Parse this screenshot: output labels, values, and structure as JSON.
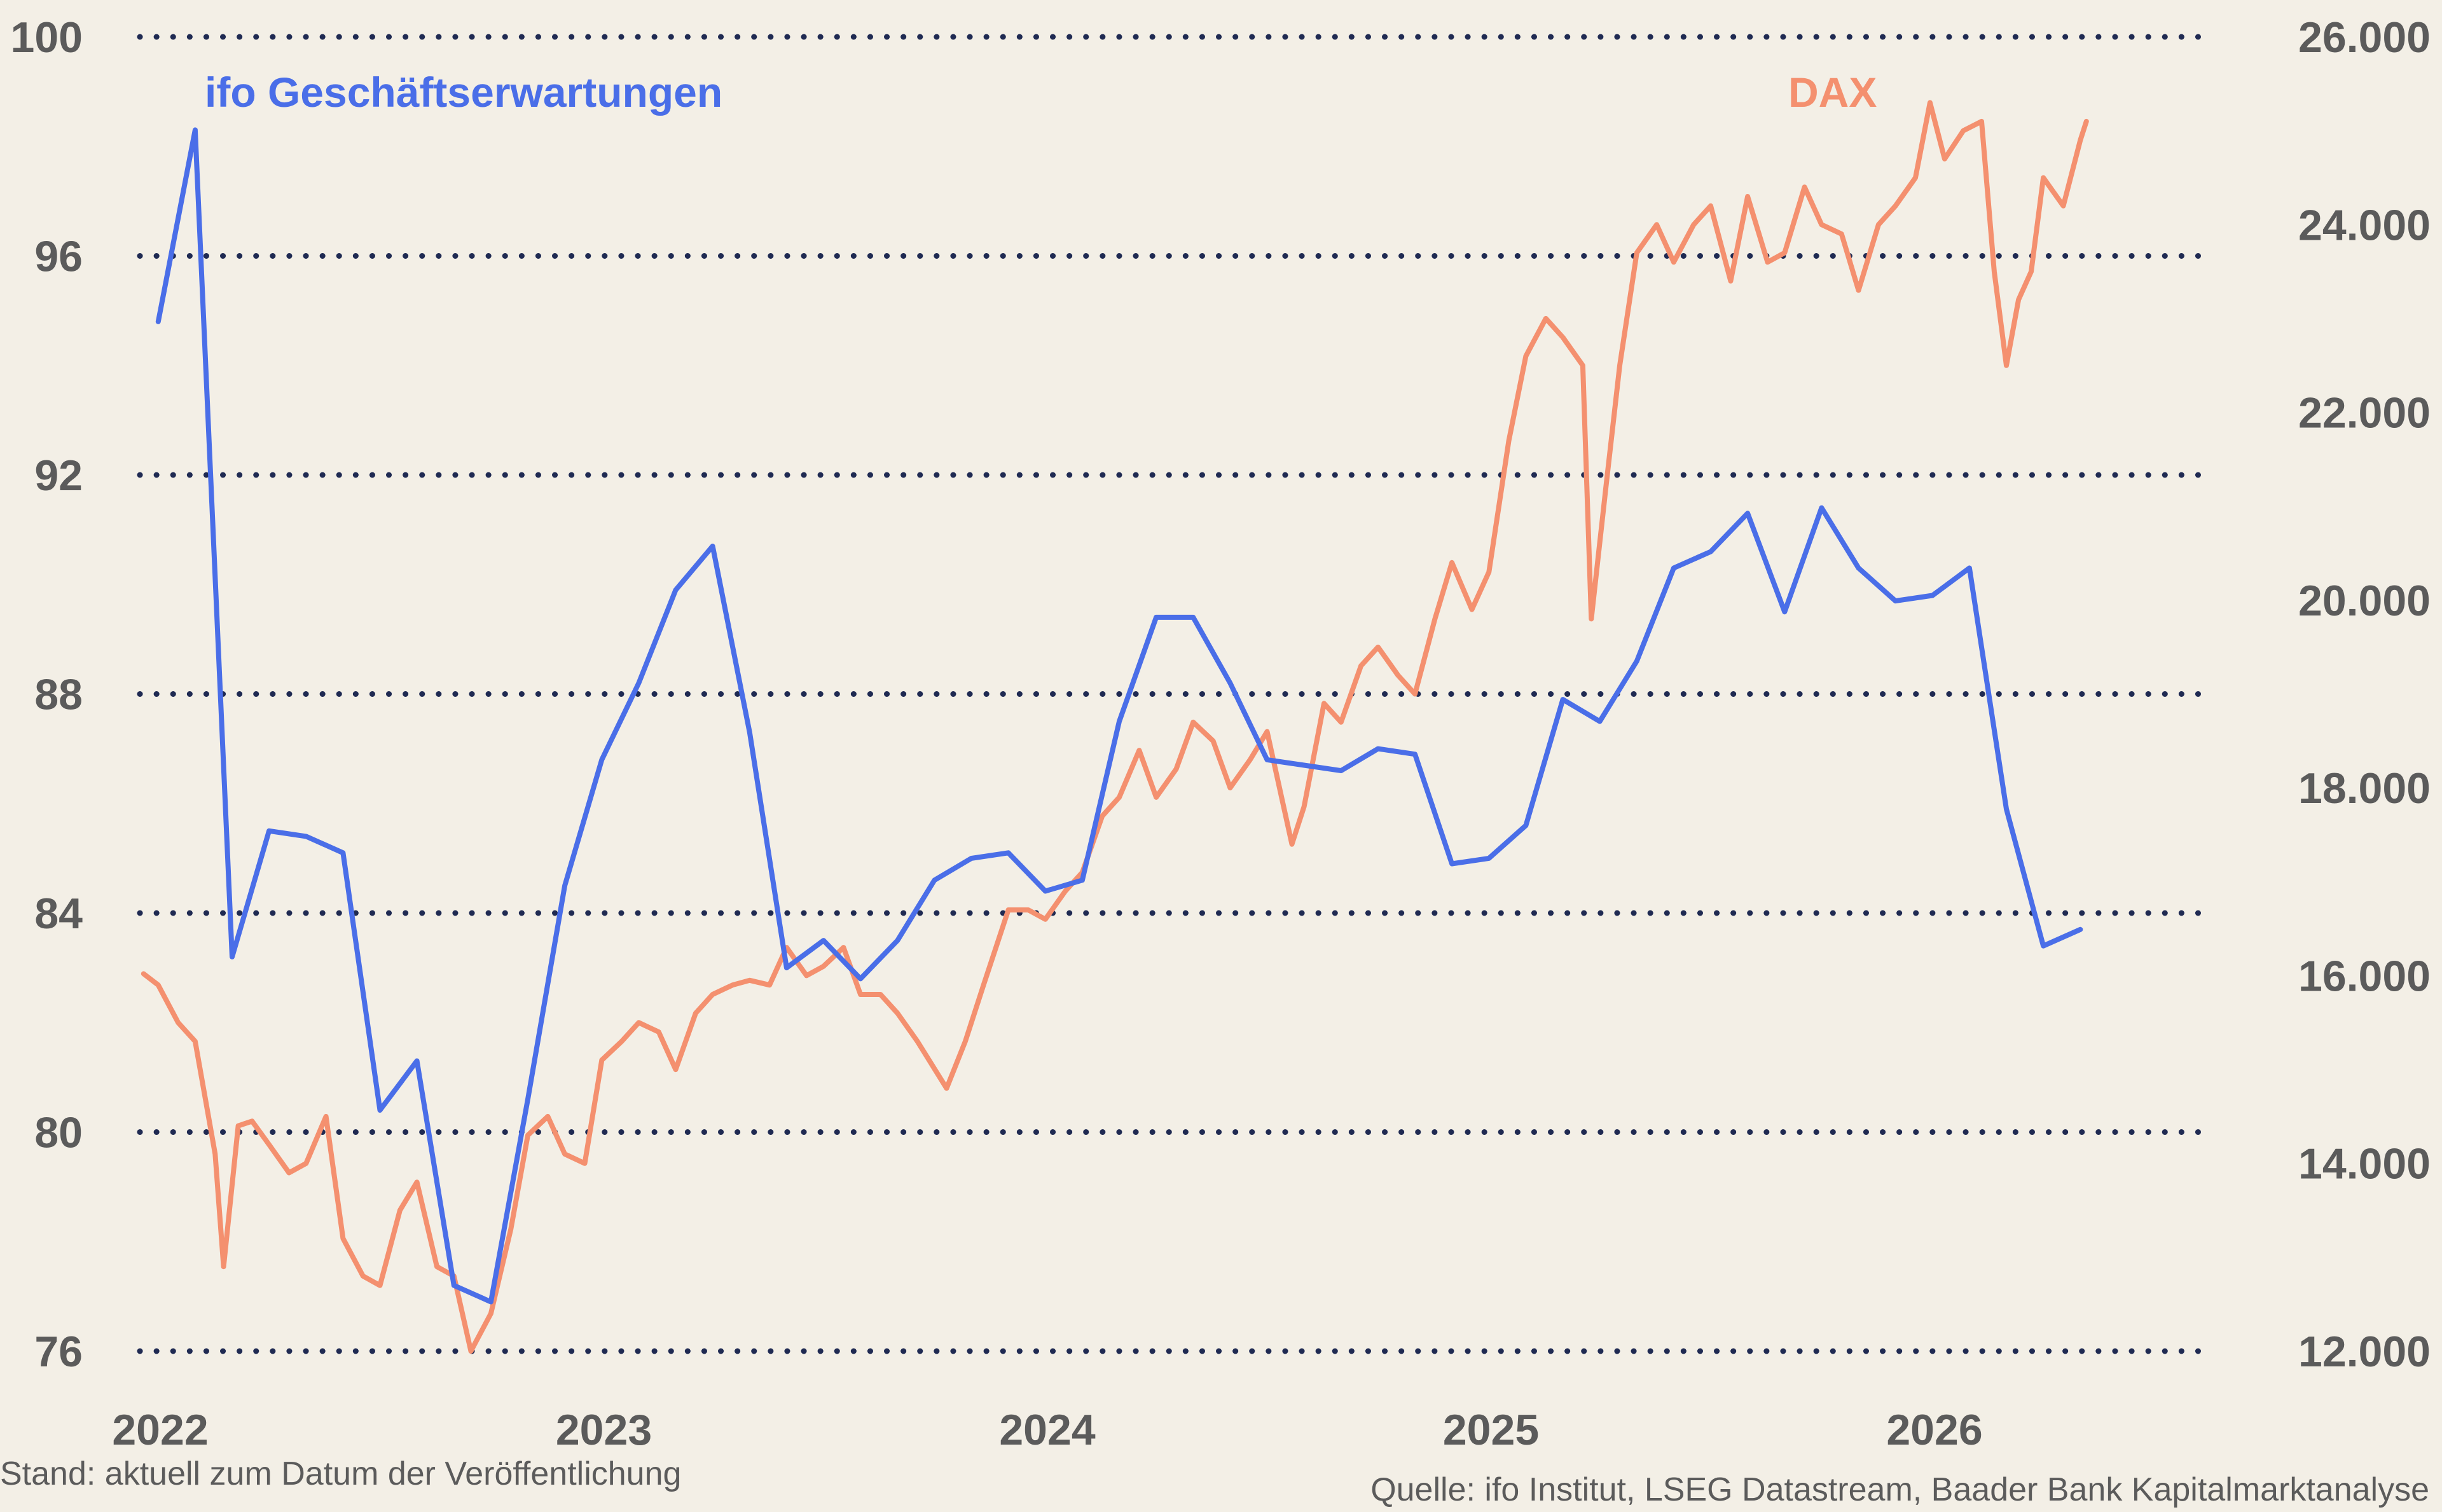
{
  "chart_data": {
    "type": "line",
    "title": "",
    "x_ticks": [
      "2022",
      "2023",
      "2024",
      "2025",
      "2026"
    ],
    "y_left": {
      "ticks": [
        "100",
        "96",
        "92",
        "88",
        "84",
        "80",
        "76"
      ],
      "ylim": [
        76,
        100
      ]
    },
    "y_right": {
      "ticks": [
        "26.000",
        "24.000",
        "22.000",
        "20.000",
        "18.000",
        "16.000",
        "14.000",
        "12.000"
      ],
      "ylim": [
        12000,
        26000
      ]
    },
    "grid": "dotted horizontal",
    "series": [
      {
        "name": "ifo Geschäftserwartungen",
        "axis": "left",
        "color": "#4a6ee8",
        "points": [
          [
            "2022-01",
            94.8
          ],
          [
            "2022-02",
            98.3
          ],
          [
            "2022-03",
            83.2
          ],
          [
            "2022-04",
            85.5
          ],
          [
            "2022-05",
            85.4
          ],
          [
            "2022-06",
            85.1
          ],
          [
            "2022-07",
            80.4
          ],
          [
            "2022-08",
            81.3
          ],
          [
            "2022-09",
            77.2
          ],
          [
            "2022-10",
            76.9
          ],
          [
            "2022-11",
            80.6
          ],
          [
            "2022-12",
            84.5
          ],
          [
            "2023-01",
            86.8
          ],
          [
            "2023-02",
            88.2
          ],
          [
            "2023-03",
            89.9
          ],
          [
            "2023-04",
            90.7
          ],
          [
            "2023-05",
            87.3
          ],
          [
            "2023-06",
            83.0
          ],
          [
            "2023-07",
            83.5
          ],
          [
            "2023-08",
            82.8
          ],
          [
            "2023-09",
            83.5
          ],
          [
            "2023-10",
            84.6
          ],
          [
            "2023-11",
            85.0
          ],
          [
            "2023-12",
            85.1
          ],
          [
            "2024-01",
            84.4
          ],
          [
            "2024-02",
            84.6
          ],
          [
            "2024-03",
            87.5
          ],
          [
            "2024-04",
            89.4
          ],
          [
            "2024-05",
            89.4
          ],
          [
            "2024-06",
            88.2
          ],
          [
            "2024-07",
            86.8
          ],
          [
            "2024-08",
            86.7
          ],
          [
            "2024-09",
            86.6
          ],
          [
            "2024-10",
            87.0
          ],
          [
            "2024-11",
            86.9
          ],
          [
            "2024-12",
            84.9
          ],
          [
            "2025-01",
            85.0
          ],
          [
            "2025-02",
            85.6
          ],
          [
            "2025-03",
            87.9
          ],
          [
            "2025-04",
            87.5
          ],
          [
            "2025-05",
            88.6
          ],
          [
            "2025-06",
            90.3
          ],
          [
            "2025-07",
            90.6
          ],
          [
            "2025-08",
            91.3
          ],
          [
            "2025-09",
            89.5
          ],
          [
            "2025-10",
            91.4
          ],
          [
            "2025-11",
            90.3
          ],
          [
            "2025-12",
            89.7
          ],
          [
            "2026-01",
            89.8
          ],
          [
            "2026-02",
            90.3
          ],
          [
            "2026-03",
            85.9
          ],
          [
            "2026-04",
            83.4
          ],
          [
            "2026-05",
            83.7
          ]
        ]
      },
      {
        "name": "DAX",
        "axis": "right",
        "color": "#f4906f",
        "points": [
          [
            "2022-01-03",
            16020
          ],
          [
            "2022-01-15",
            15900
          ],
          [
            "2022-02-01",
            15500
          ],
          [
            "2022-02-15",
            15300
          ],
          [
            "2022-03-01",
            14100
          ],
          [
            "2022-03-08",
            12900
          ],
          [
            "2022-03-20",
            14400
          ],
          [
            "2022-04-01",
            14450
          ],
          [
            "2022-04-15",
            14200
          ],
          [
            "2022-05-01",
            13900
          ],
          [
            "2022-05-15",
            14000
          ],
          [
            "2022-06-01",
            14500
          ],
          [
            "2022-06-15",
            13200
          ],
          [
            "2022-07-01",
            12800
          ],
          [
            "2022-07-15",
            12700
          ],
          [
            "2022-08-01",
            13500
          ],
          [
            "2022-08-15",
            13800
          ],
          [
            "2022-09-01",
            12900
          ],
          [
            "2022-09-15",
            12800
          ],
          [
            "2022-09-29",
            12000
          ],
          [
            "2022-10-15",
            12400
          ],
          [
            "2022-11-01",
            13300
          ],
          [
            "2022-11-15",
            14300
          ],
          [
            "2022-12-01",
            14500
          ],
          [
            "2022-12-15",
            14100
          ],
          [
            "2023-01-01",
            14000
          ],
          [
            "2023-01-15",
            15100
          ],
          [
            "2023-02-01",
            15300
          ],
          [
            "2023-02-15",
            15500
          ],
          [
            "2023-03-01",
            15400
          ],
          [
            "2023-03-15",
            15000
          ],
          [
            "2023-04-01",
            15600
          ],
          [
            "2023-04-15",
            15800
          ],
          [
            "2023-05-01",
            15900
          ],
          [
            "2023-05-15",
            15950
          ],
          [
            "2023-06-01",
            15900
          ],
          [
            "2023-06-15",
            16300
          ],
          [
            "2023-07-01",
            16000
          ],
          [
            "2023-07-15",
            16100
          ],
          [
            "2023-08-01",
            16300
          ],
          [
            "2023-08-15",
            15800
          ],
          [
            "2023-09-01",
            15800
          ],
          [
            "2023-09-15",
            15600
          ],
          [
            "2023-10-01",
            15300
          ],
          [
            "2023-10-25",
            14800
          ],
          [
            "2023-11-10",
            15300
          ],
          [
            "2023-11-25",
            15900
          ],
          [
            "2023-12-15",
            16700
          ],
          [
            "2024-01-01",
            16700
          ],
          [
            "2024-01-15",
            16600
          ],
          [
            "2024-02-01",
            16900
          ],
          [
            "2024-02-15",
            17100
          ],
          [
            "2024-03-01",
            17700
          ],
          [
            "2024-03-15",
            17900
          ],
          [
            "2024-04-01",
            18400
          ],
          [
            "2024-04-15",
            17900
          ],
          [
            "2024-05-01",
            18200
          ],
          [
            "2024-05-15",
            18700
          ],
          [
            "2024-06-01",
            18500
          ],
          [
            "2024-06-15",
            18000
          ],
          [
            "2024-07-01",
            18300
          ],
          [
            "2024-07-15",
            18600
          ],
          [
            "2024-08-05",
            17400
          ],
          [
            "2024-08-15",
            17800
          ],
          [
            "2024-09-01",
            18900
          ],
          [
            "2024-09-15",
            18700
          ],
          [
            "2024-10-01",
            19300
          ],
          [
            "2024-10-15",
            19500
          ],
          [
            "2024-11-01",
            19200
          ],
          [
            "2024-11-15",
            19000
          ],
          [
            "2024-12-01",
            19800
          ],
          [
            "2024-12-15",
            20400
          ],
          [
            "2025-01-01",
            19900
          ],
          [
            "2025-01-15",
            20300
          ],
          [
            "2025-02-01",
            21700
          ],
          [
            "2025-02-15",
            22600
          ],
          [
            "2025-03-01",
            23000
          ],
          [
            "2025-03-15",
            22800
          ],
          [
            "2025-04-01",
            22500
          ],
          [
            "2025-04-08",
            19800
          ],
          [
            "2025-04-20",
            21200
          ],
          [
            "2025-05-01",
            22500
          ],
          [
            "2025-05-15",
            23700
          ],
          [
            "2025-06-01",
            24000
          ],
          [
            "2025-06-15",
            23600
          ],
          [
            "2025-07-01",
            24000
          ],
          [
            "2025-07-15",
            24200
          ],
          [
            "2025-08-01",
            23400
          ],
          [
            "2025-08-15",
            24300
          ],
          [
            "2025-09-01",
            23600
          ],
          [
            "2025-09-15",
            23700
          ],
          [
            "2025-10-01",
            24400
          ],
          [
            "2025-10-15",
            24000
          ],
          [
            "2025-11-01",
            23900
          ],
          [
            "2025-11-15",
            23300
          ],
          [
            "2025-12-01",
            24000
          ],
          [
            "2025-12-15",
            24200
          ],
          [
            "2026-01-01",
            24500
          ],
          [
            "2026-01-13",
            25300
          ],
          [
            "2026-01-25",
            24700
          ],
          [
            "2026-02-10",
            25000
          ],
          [
            "2026-02-25",
            25100
          ],
          [
            "2026-03-05",
            23500
          ],
          [
            "2026-03-15",
            22500
          ],
          [
            "2026-03-25",
            23200
          ],
          [
            "2026-04-05",
            23500
          ],
          [
            "2026-04-15",
            24500
          ],
          [
            "2026-05-01",
            24200
          ],
          [
            "2026-05-15",
            24900
          ],
          [
            "2026-05-20",
            25100
          ]
        ]
      }
    ]
  },
  "footnote_left": "Stand: aktuell zum Datum der Veröffentlichung",
  "footnote_right": "Quelle: ifo Institut, LSEG Datastream, Baader Bank Kapitalmarktanalyse"
}
